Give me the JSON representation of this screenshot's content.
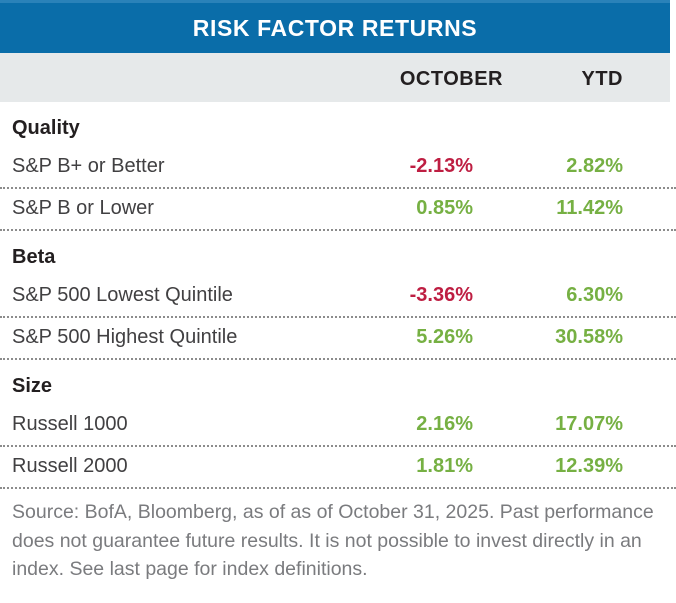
{
  "chart_data": {
    "type": "table",
    "title": "RISK FACTOR RETURNS",
    "column_headers": {
      "october": "OCTOBER",
      "ytd": "YTD"
    },
    "sections": [
      {
        "name": "Quality",
        "rows": [
          {
            "label": "S&P B+ or Better",
            "october": "-2.13%",
            "ytd": "2.82%"
          },
          {
            "label": "S&P B or Lower",
            "october": "0.85%",
            "ytd": "11.42%"
          }
        ]
      },
      {
        "name": "Beta",
        "rows": [
          {
            "label": "S&P 500 Lowest Quintile",
            "october": "-3.36%",
            "ytd": "6.30%"
          },
          {
            "label": "S&P 500 Highest Quintile",
            "october": "5.26%",
            "ytd": "30.58%"
          }
        ]
      },
      {
        "name": "Size",
        "rows": [
          {
            "label": "Russell 1000",
            "october": "2.16%",
            "ytd": "17.07%"
          },
          {
            "label": "Russell 2000",
            "october": "1.81%",
            "ytd": "12.39%"
          }
        ]
      }
    ],
    "footnote": "Source: BofA, Bloomberg, as of as of October 31, 2025. Past performance does not guarantee future results. It is not possible to invest directly in an index. See last page for index definitions."
  },
  "colors": {
    "header-bg": "#0A6DA9",
    "header-top-strip": "#2A82B9",
    "subheader-bg": "#E6E9EA",
    "positive": "#76B043",
    "negative": "#BE1E42",
    "text-dark": "#231F20",
    "label": "#414042",
    "footnote": "#7A7B7E",
    "divider": "#8C8C8C"
  }
}
